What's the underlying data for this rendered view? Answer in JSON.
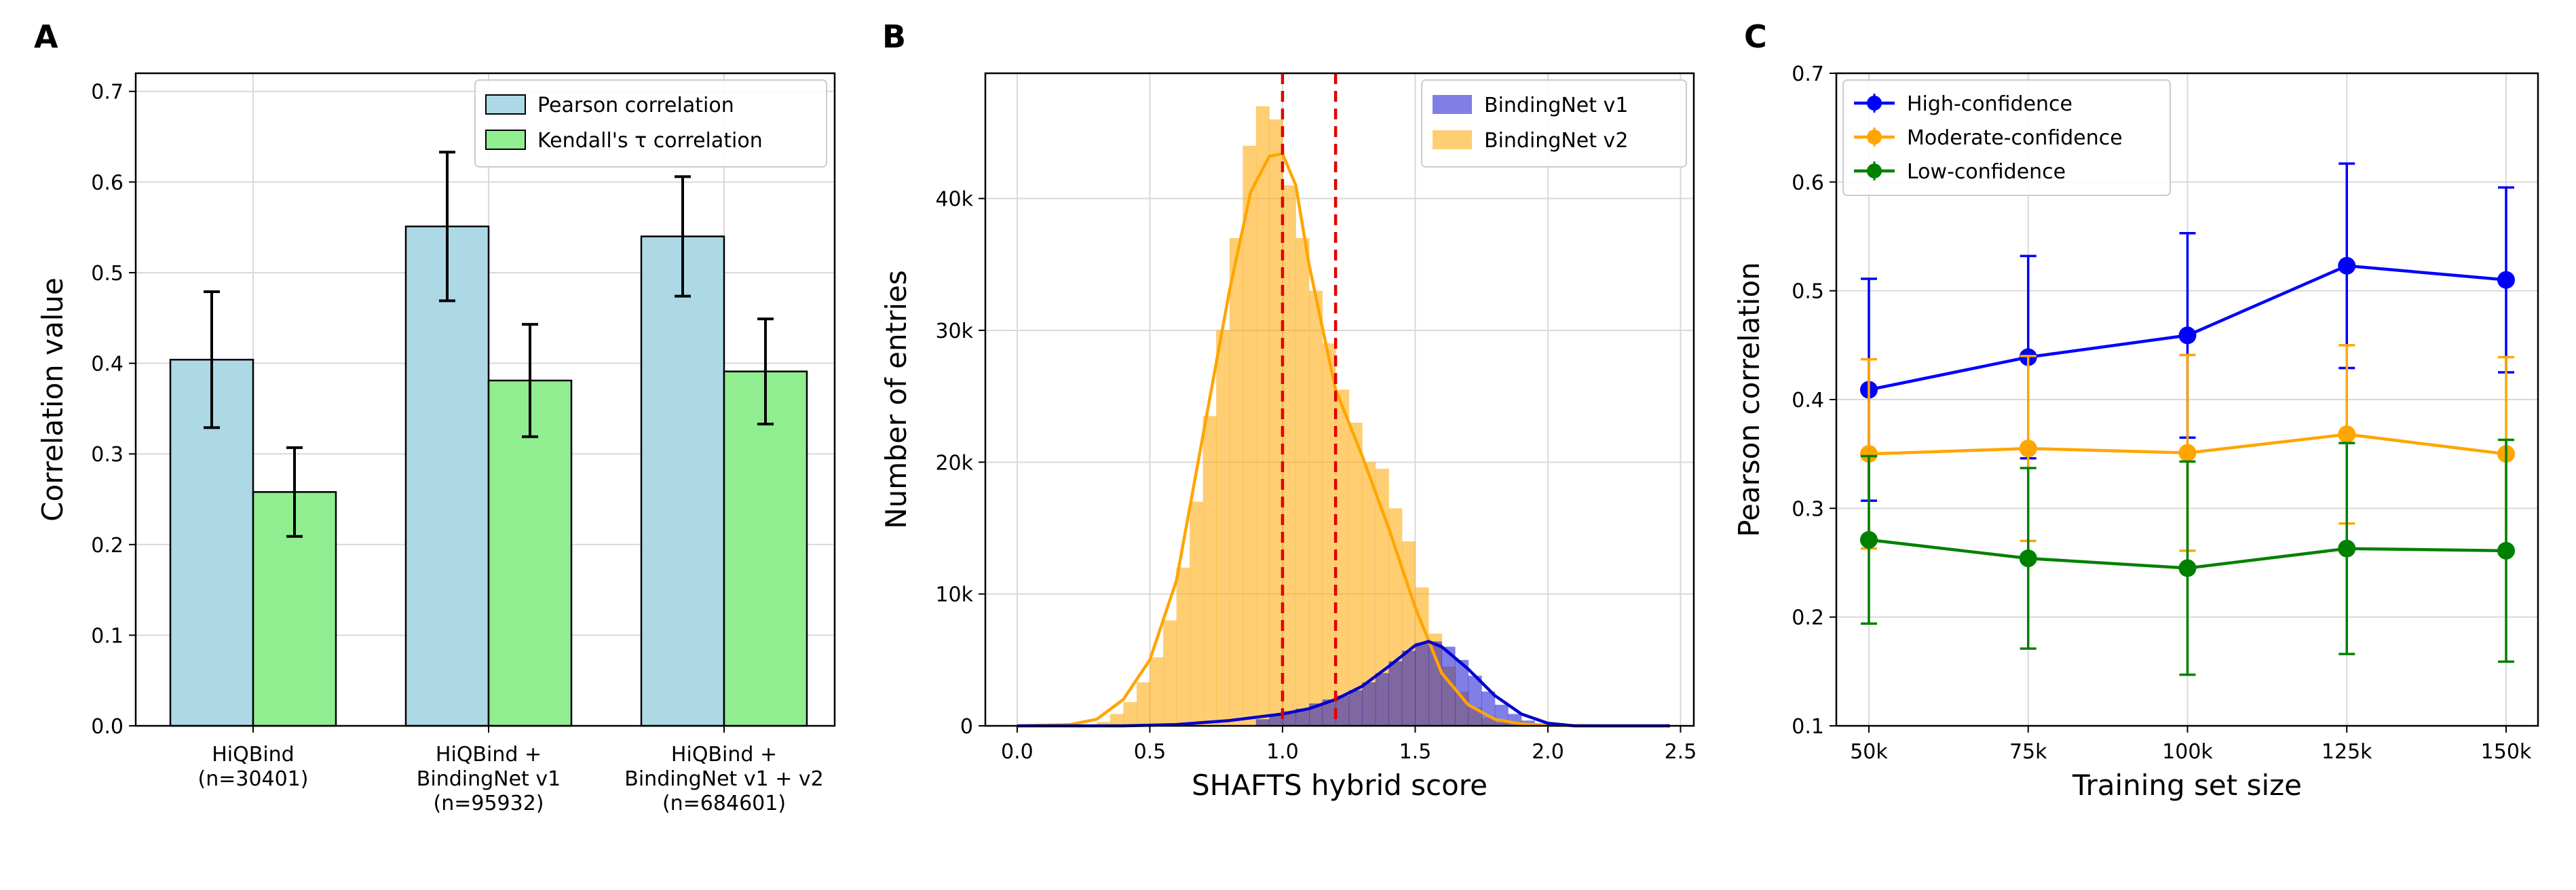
{
  "panels": [
    {
      "letter": "A",
      "chart_data": {
        "type": "bar",
        "categories": [
          [
            "HiQBind",
            "(n=30401)"
          ],
          [
            "HiQBind +",
            "BindingNet v1",
            "(n=95932)"
          ],
          [
            "HiQBind +",
            "BindingNet v1 + v2",
            "(n=684601)"
          ]
        ],
        "series": [
          {
            "name": "Pearson correlation",
            "values": [
              0.404,
              0.551,
              0.54
            ],
            "errors": [
              0.075,
              0.082,
              0.066
            ],
            "color": "#add8e6"
          },
          {
            "name": "Kendall's τ correlation",
            "values": [
              0.258,
              0.381,
              0.391
            ],
            "errors": [
              0.049,
              0.062,
              0.058
            ],
            "color": "#90ee90"
          }
        ],
        "ylabel": "Correlation value",
        "ylim": [
          0,
          0.72
        ],
        "yticks": [
          "0.0",
          "0.1",
          "0.2",
          "0.3",
          "0.4",
          "0.5",
          "0.6",
          "0.7"
        ],
        "grid": true,
        "legend": "top-right"
      }
    },
    {
      "letter": "B",
      "chart_data": {
        "type": "histogram",
        "xlabel": "SHAFTS hybrid score",
        "ylabel": "Number of entries",
        "xlim": [
          -0.12,
          2.55
        ],
        "ylim": [
          0,
          49500
        ],
        "xticks": [
          "0.0",
          "0.5",
          "1.0",
          "1.5",
          "2.0",
          "2.5"
        ],
        "yticks": [
          "0",
          "10k",
          "20k",
          "30k",
          "40k"
        ],
        "vlines": [
          1.0,
          1.2
        ],
        "grid": true,
        "legend": "top-right",
        "series": [
          {
            "name": "BindingNet v1",
            "color": "#0000cd",
            "bins": [
              0.9,
              0.95,
              1.0,
              1.05,
              1.1,
              1.15,
              1.2,
              1.25,
              1.3,
              1.35,
              1.4,
              1.45,
              1.5,
              1.55,
              1.6,
              1.65,
              1.7,
              1.75,
              1.8,
              1.85,
              1.9,
              1.95
            ],
            "counts": [
              500,
              800,
              1100,
              1300,
              1700,
              2000,
              2300,
              2700,
              3300,
              4000,
              4900,
              5700,
              6300,
              6400,
              6000,
              5000,
              3800,
              2600,
              1600,
              900,
              400,
              150
            ],
            "kde": [
              [
                0.0,
                0
              ],
              [
                0.4,
                0
              ],
              [
                0.6,
                100
              ],
              [
                0.8,
                400
              ],
              [
                1.0,
                900
              ],
              [
                1.1,
                1300
              ],
              [
                1.2,
                2000
              ],
              [
                1.3,
                3000
              ],
              [
                1.4,
                4500
              ],
              [
                1.5,
                6100
              ],
              [
                1.55,
                6400
              ],
              [
                1.6,
                6000
              ],
              [
                1.7,
                4300
              ],
              [
                1.8,
                2300
              ],
              [
                1.9,
                900
              ],
              [
                2.0,
                200
              ],
              [
                2.1,
                0
              ],
              [
                2.46,
                0
              ]
            ]
          },
          {
            "name": "BindingNet v2",
            "color": "#ffa500",
            "bins": [
              0.3,
              0.35,
              0.4,
              0.45,
              0.5,
              0.55,
              0.6,
              0.65,
              0.7,
              0.75,
              0.8,
              0.85,
              0.9,
              0.95,
              1.0,
              1.05,
              1.1,
              1.15,
              1.2,
              1.25,
              1.3,
              1.35,
              1.4,
              1.45,
              1.5,
              1.55,
              1.6,
              1.65,
              1.7,
              1.75,
              1.8,
              1.85,
              1.9,
              1.95,
              2.0,
              2.05
            ],
            "counts": [
              300,
              900,
              1800,
              3300,
              5200,
              8000,
              12000,
              17000,
              23500,
              30000,
              37000,
              44000,
              47000,
              46000,
              41000,
              37000,
              33000,
              29000,
              25500,
              23000,
              20000,
              19500,
              16500,
              14000,
              10500,
              7000,
              4500,
              2600,
              1400,
              600,
              250,
              100,
              50,
              20,
              10,
              5
            ],
            "kde": [
              [
                0.0,
                0
              ],
              [
                0.2,
                100
              ],
              [
                0.3,
                500
              ],
              [
                0.4,
                2000
              ],
              [
                0.5,
                5000
              ],
              [
                0.6,
                11000
              ],
              [
                0.7,
                22000
              ],
              [
                0.8,
                33000
              ],
              [
                0.88,
                40500
              ],
              [
                0.95,
                43200
              ],
              [
                1.0,
                43400
              ],
              [
                1.05,
                41000
              ],
              [
                1.1,
                35000
              ],
              [
                1.2,
                25500
              ],
              [
                1.3,
                20500
              ],
              [
                1.4,
                15000
              ],
              [
                1.5,
                9000
              ],
              [
                1.6,
                4000
              ],
              [
                1.7,
                1600
              ],
              [
                1.8,
                500
              ],
              [
                1.9,
                150
              ],
              [
                2.0,
                50
              ],
              [
                2.2,
                0
              ],
              [
                2.46,
                0
              ]
            ]
          }
        ]
      }
    },
    {
      "letter": "C",
      "chart_data": {
        "type": "line",
        "x": [
          "50k",
          "75k",
          "100k",
          "125k",
          "150k"
        ],
        "xlabel": "Training set size",
        "ylabel": "Pearson correlation",
        "ylim": [
          0.1,
          0.7
        ],
        "yticks": [
          "0.1",
          "0.2",
          "0.3",
          "0.4",
          "0.5",
          "0.6",
          "0.7"
        ],
        "grid": true,
        "legend": "top-left",
        "series": [
          {
            "name": "High-confidence",
            "color": "#0000ff",
            "values": [
              0.409,
              0.439,
              0.459,
              0.523,
              0.51
            ],
            "errors": [
              0.102,
              0.093,
              0.094,
              0.094,
              0.085
            ]
          },
          {
            "name": "Moderate-confidence",
            "color": "#ffa500",
            "values": [
              0.35,
              0.355,
              0.351,
              0.368,
              0.35
            ],
            "errors": [
              0.087,
              0.085,
              0.09,
              0.082,
              0.089
            ]
          },
          {
            "name": "Low-confidence",
            "color": "#008000",
            "values": [
              0.271,
              0.254,
              0.245,
              0.263,
              0.261
            ],
            "errors": [
              0.077,
              0.083,
              0.098,
              0.097,
              0.102
            ]
          }
        ]
      }
    }
  ]
}
